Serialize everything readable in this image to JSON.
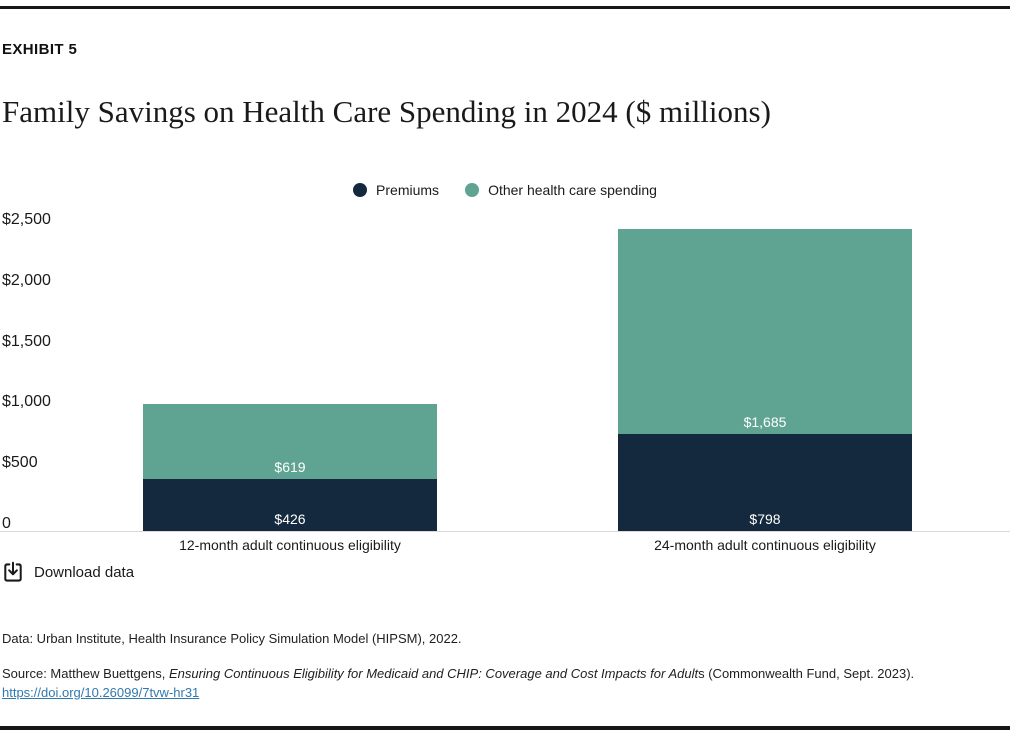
{
  "page": {
    "exhibit_label": "EXHIBIT 5",
    "title": "Family Savings on Health Care Spending in 2024 ($ millions)"
  },
  "chart_data": {
    "type": "bar",
    "stacked": true,
    "title": "Family Savings on Health Care Spending in 2024 ($ millions)",
    "categories": [
      "12-month adult continuous eligibility",
      "24-month adult continuous eligibility"
    ],
    "series": [
      {
        "name": "Premiums",
        "color": "#15293E",
        "values": [
          426,
          798
        ],
        "display_values": [
          "$426",
          "$798"
        ]
      },
      {
        "name": "Other health care spending",
        "color": "#5FA492",
        "values": [
          619,
          1685
        ],
        "display_values": [
          "$619",
          "$1,685"
        ]
      }
    ],
    "stack_order_bottom_to_top": [
      "Premiums",
      "Other health care spending"
    ],
    "yticks": [
      {
        "value": 0,
        "label": "0"
      },
      {
        "value": 500,
        "label": "$500"
      },
      {
        "value": 1000,
        "label": "$1,000"
      },
      {
        "value": 1500,
        "label": "$1,500"
      },
      {
        "value": 2000,
        "label": "$2,000"
      },
      {
        "value": 2500,
        "label": "$2,500"
      }
    ],
    "ylim": [
      0,
      2500
    ],
    "xlabel": "",
    "ylabel": "",
    "grid": false,
    "legend_position": "top-center"
  },
  "download": {
    "label": "Download data",
    "icon": "download-icon"
  },
  "footnotes": {
    "data_line": "Data: Urban Institute, Health Insurance Policy Simulation Model (HIPSM), 2022.",
    "source_prefix": "Source: Matthew Buettgens, ",
    "source_italic": "Ensuring Continuous Eligibility for Medicaid and CHIP: Coverage and Cost Impacts for Adult",
    "source_suffix": "s (Commonwealth Fund, Sept. 2023).",
    "doi_link": "https://doi.org/10.26099/7tvw-hr31"
  }
}
